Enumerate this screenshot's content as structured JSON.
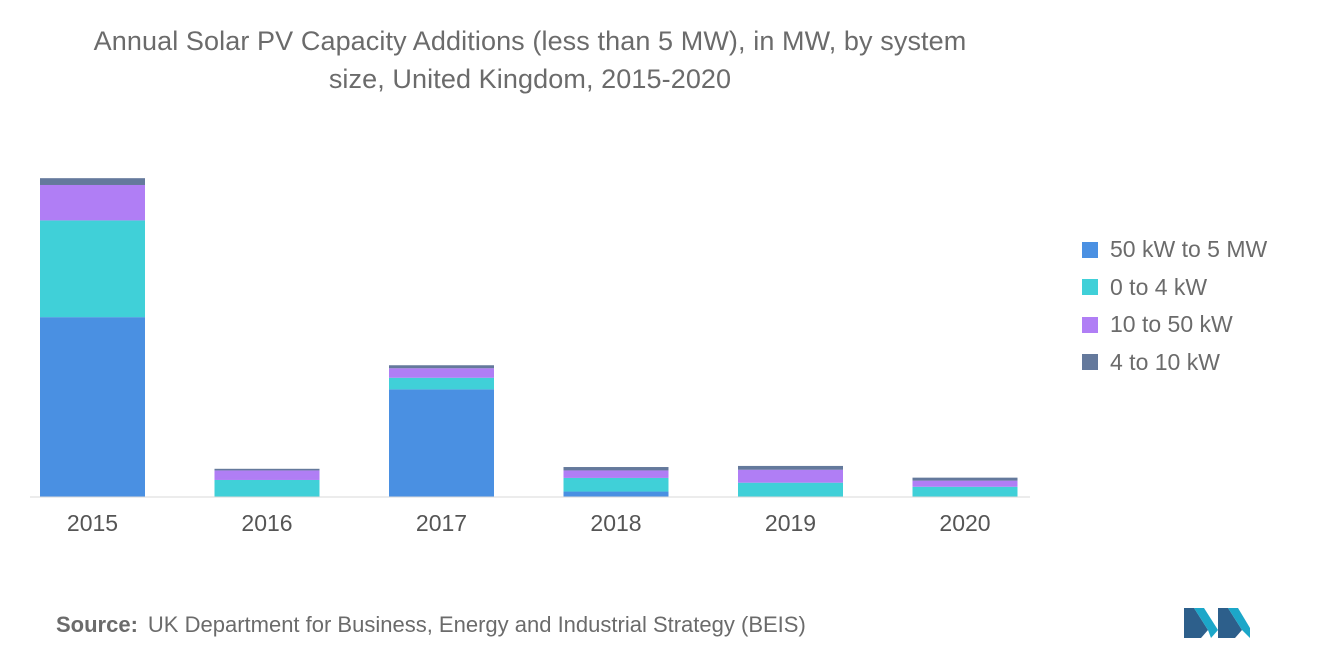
{
  "title": {
    "line1": "Annual Solar PV Capacity Additions (less than 5 MW), in MW, by system",
    "line2": "size, United Kingdom, 2015-2020"
  },
  "source": {
    "label": "Source:",
    "text": "UK Department for Business, Energy and Industrial Strategy (BEIS)"
  },
  "logo": {
    "icon": "mordor-intelligence-logo-icon",
    "colors": [
      "#1ca7c9",
      "#2d5f8b"
    ]
  },
  "chart_data": {
    "type": "bar",
    "stacked": true,
    "categories": [
      "2015",
      "2016",
      "2017",
      "2018",
      "2019",
      "2020"
    ],
    "series": [
      {
        "name": "50 kW to 5 MW",
        "color": "#4a90e2",
        "values": [
          1320,
          0,
          790,
          40,
          0,
          0
        ]
      },
      {
        "name": "0 to 4 kW",
        "color": "#40d0d8",
        "values": [
          710,
          125,
          85,
          100,
          105,
          75
        ]
      },
      {
        "name": "10 to 50 kW",
        "color": "#b07ef5",
        "values": [
          260,
          70,
          70,
          55,
          95,
          45
        ]
      },
      {
        "name": "4 to 10 kW",
        "color": "#64799c",
        "values": [
          50,
          12,
          22,
          25,
          28,
          22
        ]
      }
    ],
    "ylim": [
      0,
      2400
    ],
    "legend_position": "right",
    "grid": false,
    "xlabel": "",
    "ylabel": ""
  }
}
